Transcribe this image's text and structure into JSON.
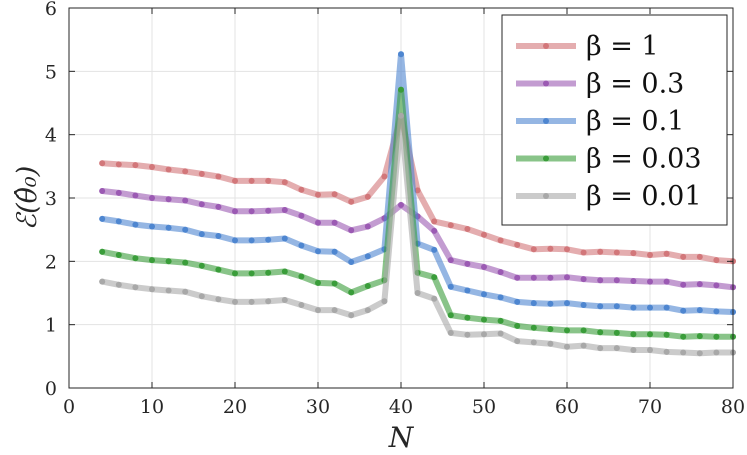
{
  "chart_data": {
    "type": "line",
    "xlabel": "N",
    "ylabel": "ℰ(θ̂₀)",
    "xlim": [
      0,
      80
    ],
    "ylim": [
      0,
      6
    ],
    "xticks": [
      "0",
      "10",
      "20",
      "30",
      "40",
      "50",
      "60",
      "70",
      "80"
    ],
    "yticks": [
      "0",
      "1",
      "2",
      "3",
      "4",
      "5",
      "6"
    ],
    "grid": true,
    "legend_position": "top-right",
    "x": [
      4,
      6,
      8,
      10,
      12,
      14,
      16,
      18,
      20,
      22,
      24,
      26,
      28,
      30,
      32,
      34,
      36,
      38,
      40,
      42,
      44,
      46,
      48,
      50,
      52,
      54,
      56,
      58,
      60,
      62,
      64,
      66,
      68,
      70,
      72,
      74,
      76,
      78,
      80
    ],
    "series": [
      {
        "name": "β = 1",
        "color": "#d2777a",
        "values": [
          3.55,
          3.53,
          3.52,
          3.49,
          3.45,
          3.42,
          3.38,
          3.34,
          3.27,
          3.27,
          3.27,
          3.25,
          3.13,
          3.05,
          3.06,
          2.94,
          3.02,
          3.34,
          4.3,
          3.12,
          2.63,
          2.57,
          2.51,
          2.42,
          2.33,
          2.26,
          2.19,
          2.2,
          2.19,
          2.14,
          2.15,
          2.14,
          2.13,
          2.1,
          2.12,
          2.07,
          2.07,
          2.02,
          2.0
        ]
      },
      {
        "name": "β = 0.3",
        "color": "#9b5ab3",
        "values": [
          3.11,
          3.08,
          3.04,
          3.0,
          2.98,
          2.96,
          2.9,
          2.86,
          2.79,
          2.79,
          2.8,
          2.81,
          2.72,
          2.61,
          2.61,
          2.49,
          2.55,
          2.68,
          2.89,
          2.71,
          2.48,
          2.02,
          1.96,
          1.91,
          1.83,
          1.74,
          1.74,
          1.74,
          1.75,
          1.72,
          1.7,
          1.7,
          1.69,
          1.68,
          1.68,
          1.63,
          1.64,
          1.62,
          1.59
        ]
      },
      {
        "name": "β = 0.1",
        "color": "#4e86d0",
        "values": [
          2.67,
          2.63,
          2.58,
          2.55,
          2.53,
          2.5,
          2.43,
          2.4,
          2.33,
          2.33,
          2.34,
          2.36,
          2.25,
          2.16,
          2.15,
          1.99,
          2.08,
          2.19,
          5.27,
          2.28,
          2.18,
          1.6,
          1.54,
          1.48,
          1.43,
          1.36,
          1.34,
          1.33,
          1.34,
          1.31,
          1.29,
          1.29,
          1.27,
          1.27,
          1.27,
          1.22,
          1.23,
          1.21,
          1.2
        ]
      },
      {
        "name": "β = 0.03",
        "color": "#3a9d3a",
        "values": [
          2.15,
          2.1,
          2.05,
          2.02,
          2.0,
          1.98,
          1.93,
          1.87,
          1.81,
          1.81,
          1.82,
          1.84,
          1.76,
          1.66,
          1.65,
          1.51,
          1.61,
          1.7,
          4.71,
          1.82,
          1.75,
          1.15,
          1.11,
          1.08,
          1.06,
          0.98,
          0.95,
          0.93,
          0.91,
          0.91,
          0.88,
          0.87,
          0.85,
          0.85,
          0.84,
          0.81,
          0.82,
          0.81,
          0.81
        ]
      },
      {
        "name": "β = 0.01",
        "color": "#a8a8a8",
        "values": [
          1.68,
          1.63,
          1.59,
          1.56,
          1.54,
          1.52,
          1.45,
          1.4,
          1.36,
          1.36,
          1.37,
          1.39,
          1.31,
          1.23,
          1.23,
          1.15,
          1.23,
          1.37,
          4.3,
          1.5,
          1.41,
          0.87,
          0.84,
          0.85,
          0.86,
          0.74,
          0.72,
          0.7,
          0.65,
          0.67,
          0.63,
          0.63,
          0.6,
          0.6,
          0.57,
          0.56,
          0.55,
          0.56,
          0.56
        ]
      }
    ]
  }
}
